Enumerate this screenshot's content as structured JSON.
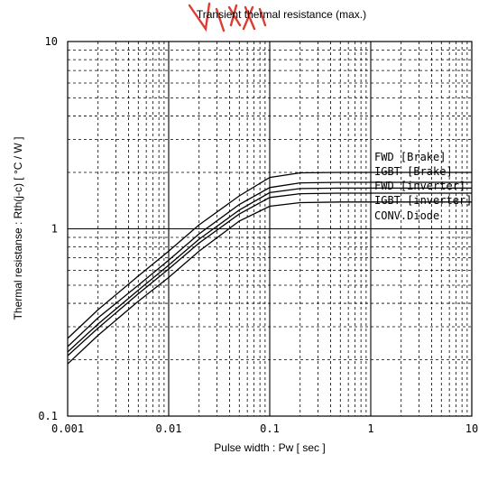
{
  "chart_data": {
    "type": "line",
    "title": "Transient thermal resistance (max.)",
    "xlabel": "Pulse width  :  Pw  [ sec ]",
    "ylabel": "Thermal resistanse  :  Rth(j-c)  [ °C / W ]",
    "x_scale": "log",
    "y_scale": "log",
    "xlim": [
      0.001,
      10
    ],
    "ylim": [
      0.1,
      10
    ],
    "grid": true,
    "x_tick_labels": [
      "0.001",
      "0.01",
      "0.1",
      "1",
      "10"
    ],
    "y_tick_labels": [
      "0.1",
      "1",
      "10"
    ],
    "legend_placement": "right, labels beside curve plateaus",
    "x": [
      0.001,
      0.002,
      0.005,
      0.01,
      0.02,
      0.05,
      0.1,
      0.2,
      0.5,
      1,
      2,
      5,
      10
    ],
    "series": [
      {
        "name": "FWD [Brake]",
        "values": [
          0.26,
          0.37,
          0.56,
          0.76,
          1.05,
          1.5,
          1.88,
          1.99,
          2.0,
          2.0,
          2.0,
          2.0,
          2.0
        ]
      },
      {
        "name": "IGBT [Brake]",
        "values": [
          0.235,
          0.335,
          0.5,
          0.68,
          0.94,
          1.35,
          1.66,
          1.76,
          1.77,
          1.77,
          1.77,
          1.77,
          1.77
        ]
      },
      {
        "name": "FWD [inverter]",
        "values": [
          0.22,
          0.31,
          0.47,
          0.64,
          0.88,
          1.26,
          1.56,
          1.64,
          1.65,
          1.65,
          1.65,
          1.65,
          1.65
        ]
      },
      {
        "name": "IGBT [inverter]",
        "values": [
          0.21,
          0.295,
          0.45,
          0.61,
          0.84,
          1.2,
          1.47,
          1.54,
          1.55,
          1.55,
          1.55,
          1.55,
          1.55
        ]
      },
      {
        "name": "CONV.Diode",
        "values": [
          0.19,
          0.27,
          0.41,
          0.55,
          0.76,
          1.1,
          1.32,
          1.38,
          1.39,
          1.39,
          1.39,
          1.39,
          1.39
        ]
      }
    ]
  }
}
